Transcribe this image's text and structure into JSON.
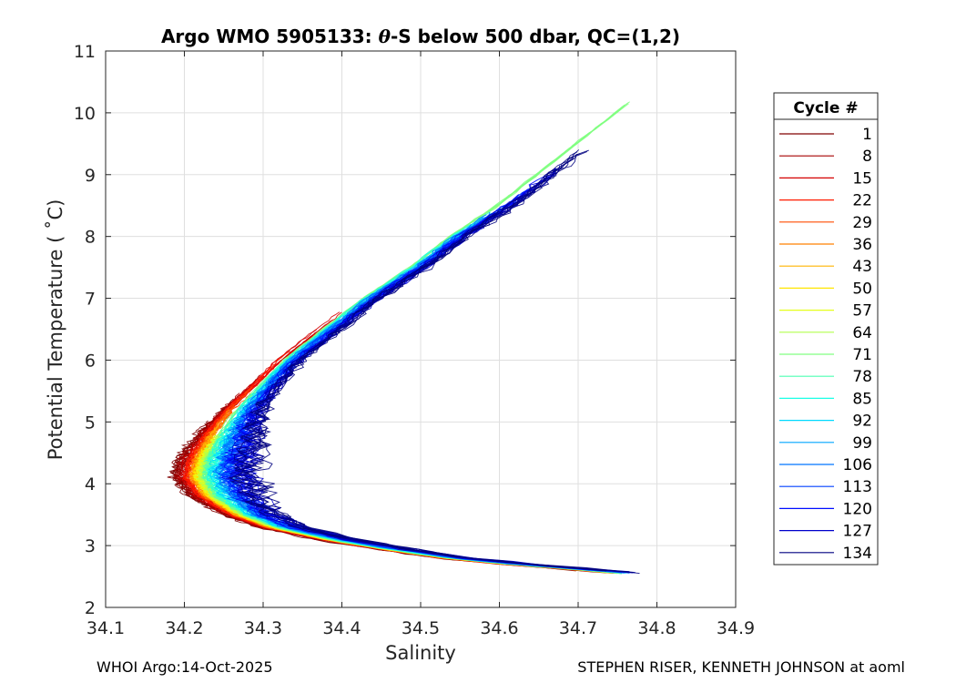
{
  "chart_data": {
    "type": "line",
    "title": "Argo WMO 5905133: θ-S below 500 dbar,  QC=(1,2)",
    "title_parts": {
      "pre": "Argo WMO 5905133: ",
      "theta": "θ",
      "post": "-S below 500 dbar,  QC=(1,2)"
    },
    "xlabel": "Salinity",
    "ylabel": "Potential Temperature ( ˚C)",
    "xlim": [
      34.1,
      34.9
    ],
    "ylim": [
      2,
      11
    ],
    "xticks": [
      34.1,
      34.2,
      34.3,
      34.4,
      34.5,
      34.6,
      34.7,
      34.8,
      34.9
    ],
    "xtick_labels": [
      "34.1",
      "34.2",
      "34.3",
      "34.4",
      "34.5",
      "34.6",
      "34.7",
      "34.8",
      "34.9"
    ],
    "yticks": [
      2,
      3,
      4,
      5,
      6,
      7,
      8,
      9,
      10,
      11
    ],
    "ytick_labels": [
      "2",
      "3",
      "4",
      "5",
      "6",
      "7",
      "8",
      "9",
      "10",
      "11"
    ],
    "grid": true,
    "legend": {
      "title": "Cycle #",
      "placement": "outside-right",
      "entries": [
        {
          "label": "1",
          "color": "#800000"
        },
        {
          "label": "8",
          "color": "#a60000"
        },
        {
          "label": "15",
          "color": "#d40000"
        },
        {
          "label": "22",
          "color": "#ff1a00"
        },
        {
          "label": "29",
          "color": "#ff4d00"
        },
        {
          "label": "36",
          "color": "#ff8000"
        },
        {
          "label": "43",
          "color": "#ffb300"
        },
        {
          "label": "50",
          "color": "#ffe600"
        },
        {
          "label": "57",
          "color": "#e6ff1a"
        },
        {
          "label": "64",
          "color": "#b3ff4d"
        },
        {
          "label": "71",
          "color": "#80ff80"
        },
        {
          "label": "78",
          "color": "#4dffb3"
        },
        {
          "label": "85",
          "color": "#1affe6"
        },
        {
          "label": "92",
          "color": "#00d9ff"
        },
        {
          "label": "99",
          "color": "#00a6ff"
        },
        {
          "label": "106",
          "color": "#0073ff"
        },
        {
          "label": "113",
          "color": "#0040ff"
        },
        {
          "label": "120",
          "color": "#000dff"
        },
        {
          "label": "127",
          "color": "#0000cc"
        },
        {
          "label": "134",
          "color": "#000080"
        }
      ]
    },
    "series_envelope": {
      "description": "shared theta-S curve shape; each cycle is a perturbed copy",
      "theta": [
        2.55,
        2.62,
        2.7,
        2.8,
        2.95,
        3.1,
        3.3,
        3.5,
        3.8,
        4.1,
        4.4,
        4.8,
        5.2,
        5.6,
        6.0,
        6.5,
        7.0,
        7.5,
        8.0,
        8.5,
        9.0,
        9.3
      ],
      "salinity": [
        34.76,
        34.7,
        34.62,
        34.54,
        34.46,
        34.39,
        34.32,
        34.28,
        34.245,
        34.23,
        34.235,
        34.25,
        34.27,
        34.3,
        34.33,
        34.38,
        34.43,
        34.49,
        34.54,
        34.6,
        34.65,
        34.68
      ]
    },
    "series": [
      {
        "name": "1",
        "color": "#800000",
        "s_offset": -0.028,
        "noise": 0.006,
        "theta_max": 5.4
      },
      {
        "name": "8",
        "color": "#a60000",
        "s_offset": -0.024,
        "noise": 0.005,
        "theta_max": 5.8
      },
      {
        "name": "15",
        "color": "#d40000",
        "s_offset": -0.021,
        "noise": 0.004,
        "theta_max": 6.8
      },
      {
        "name": "22",
        "color": "#ff1a00",
        "s_offset": -0.018,
        "noise": 0.004,
        "theta_max": 6.2
      },
      {
        "name": "29",
        "color": "#ff4d00",
        "s_offset": -0.015,
        "noise": 0.004,
        "theta_max": 5.6
      },
      {
        "name": "36",
        "color": "#ff8000",
        "s_offset": -0.013,
        "noise": 0.004,
        "theta_max": 5.2
      },
      {
        "name": "43",
        "color": "#ffb300",
        "s_offset": -0.011,
        "noise": 0.004,
        "theta_max": 5.0
      },
      {
        "name": "50",
        "color": "#ffe600",
        "s_offset": -0.009,
        "noise": 0.004,
        "theta_max": 4.8
      },
      {
        "name": "57",
        "color": "#e6ff1a",
        "s_offset": -0.007,
        "noise": 0.005,
        "theta_max": 5.0
      },
      {
        "name": "64",
        "color": "#b3ff4d",
        "s_offset": -0.005,
        "noise": 0.005,
        "theta_max": 4.9
      },
      {
        "name": "71",
        "color": "#80ff80",
        "s_offset": -0.002,
        "noise": 0.004,
        "theta_max": 10.2
      },
      {
        "name": "78",
        "color": "#4dffb3",
        "s_offset": 0.0,
        "noise": 0.006,
        "theta_max": 5.0
      },
      {
        "name": "85",
        "color": "#1affe6",
        "s_offset": 0.004,
        "noise": 0.008,
        "theta_max": 8.4
      },
      {
        "name": "92",
        "color": "#00d9ff",
        "s_offset": 0.008,
        "noise": 0.01,
        "theta_max": 7.0
      },
      {
        "name": "99",
        "color": "#00a6ff",
        "s_offset": 0.012,
        "noise": 0.012,
        "theta_max": 8.5
      },
      {
        "name": "106",
        "color": "#0073ff",
        "s_offset": 0.016,
        "noise": 0.015,
        "theta_max": 8.6
      },
      {
        "name": "113",
        "color": "#0040ff",
        "s_offset": 0.02,
        "noise": 0.017,
        "theta_max": 8.8
      },
      {
        "name": "120",
        "color": "#000dff",
        "s_offset": 0.024,
        "noise": 0.02,
        "theta_max": 9.0
      },
      {
        "name": "127",
        "color": "#0000cc",
        "s_offset": 0.03,
        "noise": 0.022,
        "theta_max": 9.2
      },
      {
        "name": "134",
        "color": "#000080",
        "s_offset": 0.036,
        "noise": 0.024,
        "theta_max": 9.4
      }
    ]
  },
  "footer": {
    "left": "WHOI Argo:14-Oct-2025",
    "right": "STEPHEN RISER, KENNETH JOHNSON at aoml"
  }
}
